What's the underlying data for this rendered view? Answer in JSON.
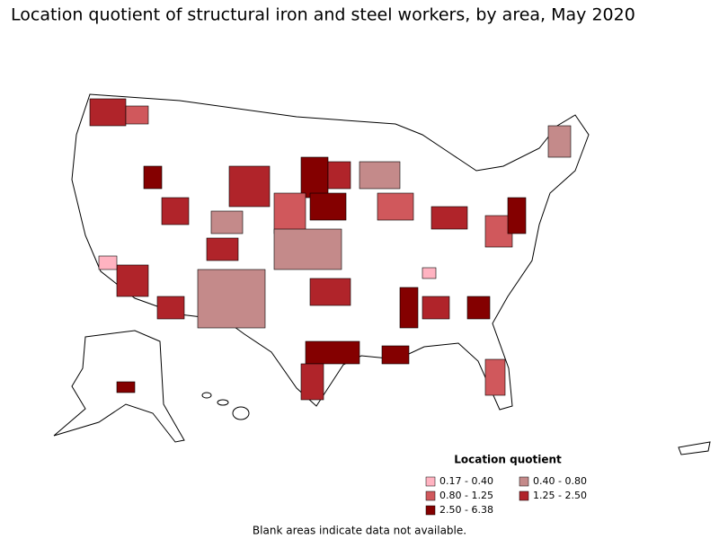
{
  "title": "Location quotient of structural iron and steel workers, by area, May 2020",
  "legend": {
    "title": "Location quotient",
    "items": [
      {
        "label": "0.17 - 0.40",
        "color": "#ffb3c1"
      },
      {
        "label": "0.40 - 0.80",
        "color": "#c48a8a"
      },
      {
        "label": "0.80 - 1.25",
        "color": "#d0585c"
      },
      {
        "label": "1.25 - 2.50",
        "color": "#b0242a"
      },
      {
        "label": "2.50 - 6.38",
        "color": "#840000"
      }
    ]
  },
  "note": "Blank areas indicate data not available."
}
